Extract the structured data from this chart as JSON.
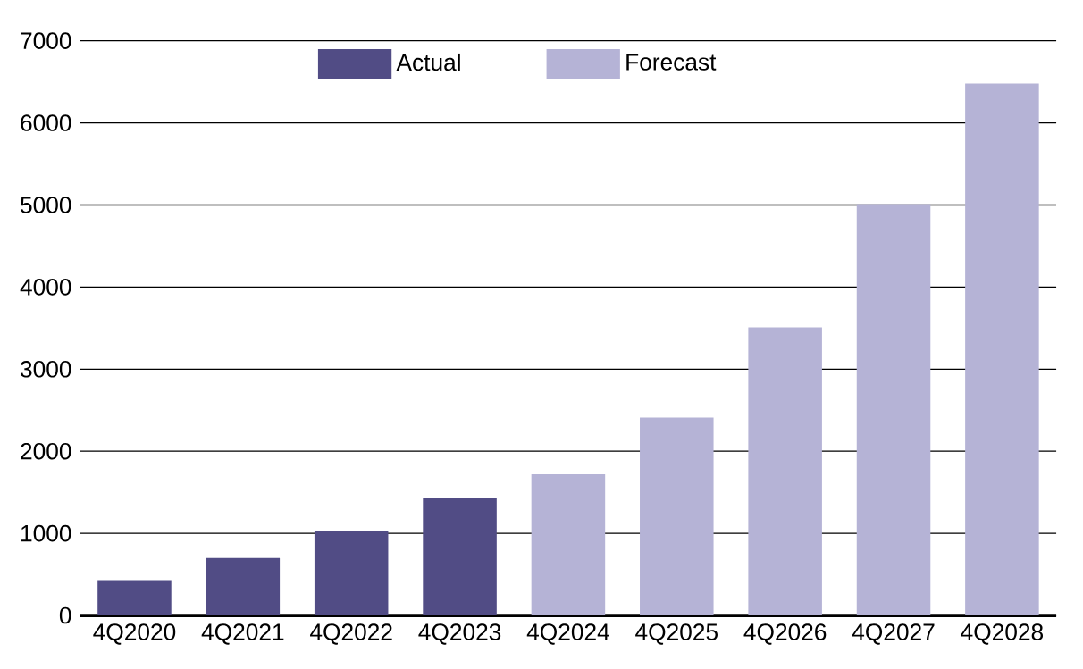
{
  "chart_data": {
    "type": "bar",
    "categories": [
      "4Q2020",
      "4Q2021",
      "4Q2022",
      "4Q2023",
      "4Q2024",
      "4Q2025",
      "4Q2026",
      "4Q2027",
      "4Q2028"
    ],
    "series": [
      {
        "name": "Actual",
        "color": "#514c85",
        "values": [
          430,
          700,
          1030,
          1430,
          null,
          null,
          null,
          null,
          null
        ]
      },
      {
        "name": "Forecast",
        "color": "#b5b3d6",
        "values": [
          null,
          null,
          null,
          null,
          1720,
          2410,
          3510,
          5010,
          6480
        ]
      }
    ],
    "ylim": [
      0,
      7000
    ],
    "yticks": [
      0,
      1000,
      2000,
      3000,
      4000,
      5000,
      6000,
      7000
    ],
    "grid": "y",
    "legend": "top"
  }
}
